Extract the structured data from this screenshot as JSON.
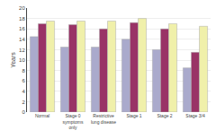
{
  "chart_data": {
    "type": "bar",
    "categories": [
      "Normal",
      "Stage 0\nsymptoms\nonly",
      "Restrictive\nlung disease",
      "Stage 1",
      "Stage 2",
      "Stage 3/4"
    ],
    "series": [
      {
        "color": "#aaaacc",
        "values": [
          14.5,
          12.5,
          12.5,
          14.0,
          12.0,
          8.5
        ]
      },
      {
        "color": "#993366",
        "values": [
          17.0,
          16.8,
          16.0,
          17.2,
          16.0,
          11.5
        ]
      },
      {
        "color": "#f0f0aa",
        "values": [
          17.5,
          17.5,
          17.5,
          18.0,
          17.0,
          16.5
        ]
      }
    ],
    "ylabel": "Years",
    "ylim": [
      0,
      20
    ],
    "yticks": [
      0,
      2,
      4,
      6,
      8,
      10,
      12,
      14,
      16,
      18,
      20
    ],
    "grid": true
  }
}
